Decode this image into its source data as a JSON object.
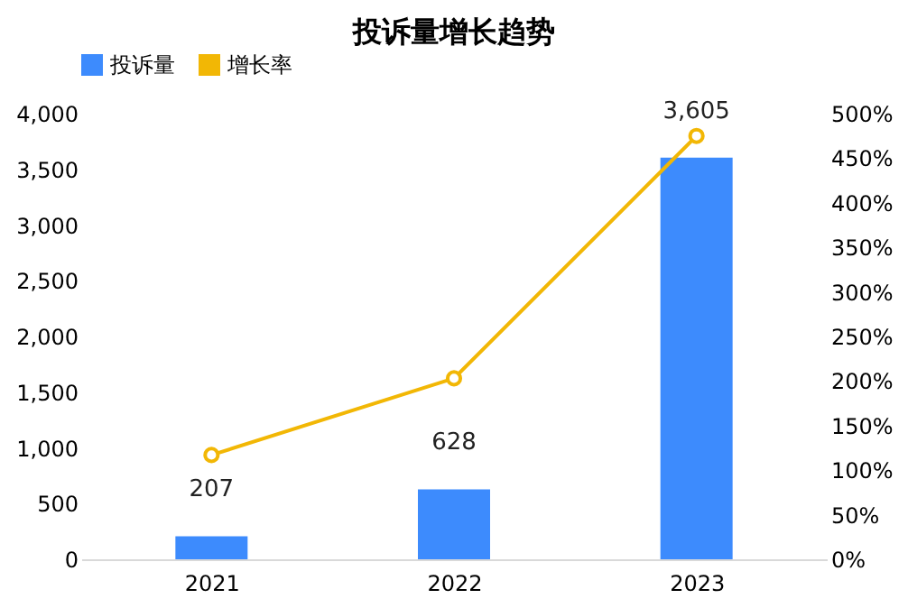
{
  "chart_data": {
    "type": "bar",
    "title": "投诉量增长趋势",
    "categories": [
      "2021",
      "2022",
      "2023"
    ],
    "series": [
      {
        "name": "投诉量",
        "color": "#3d8bfd",
        "values": [
          207,
          628,
          3605
        ],
        "value_labels": [
          "207",
          "628",
          "3,605"
        ]
      },
      {
        "name": "增长率",
        "type": "line",
        "axis": "y2",
        "color": "#f2b705",
        "values": [
          117,
          203,
          475
        ]
      }
    ],
    "ylim": [
      0,
      4000
    ],
    "yticks": [
      {
        "value": 0,
        "label": "0"
      },
      {
        "value": 500,
        "label": "500"
      },
      {
        "value": 1000,
        "label": "1,000"
      },
      {
        "value": 1500,
        "label": "1,500"
      },
      {
        "value": 2000,
        "label": "2,000"
      },
      {
        "value": 2500,
        "label": "2,500"
      },
      {
        "value": 3000,
        "label": "3,000"
      },
      {
        "value": 3500,
        "label": "3,500"
      },
      {
        "value": 4000,
        "label": "4,000"
      }
    ],
    "y2lim": [
      0,
      500
    ],
    "y2ticks": [
      {
        "value": 0,
        "label": "0%"
      },
      {
        "value": 50,
        "label": "50%"
      },
      {
        "value": 100,
        "label": "100%"
      },
      {
        "value": 150,
        "label": "150%"
      },
      {
        "value": 200,
        "label": "200%"
      },
      {
        "value": 250,
        "label": "250%"
      },
      {
        "value": 300,
        "label": "300%"
      },
      {
        "value": 350,
        "label": "350%"
      },
      {
        "value": 400,
        "label": "400%"
      },
      {
        "value": 450,
        "label": "450%"
      },
      {
        "value": 500,
        "label": "500%"
      }
    ],
    "grid": false,
    "legend": "top",
    "marker": "circle",
    "line_style": "solid"
  }
}
